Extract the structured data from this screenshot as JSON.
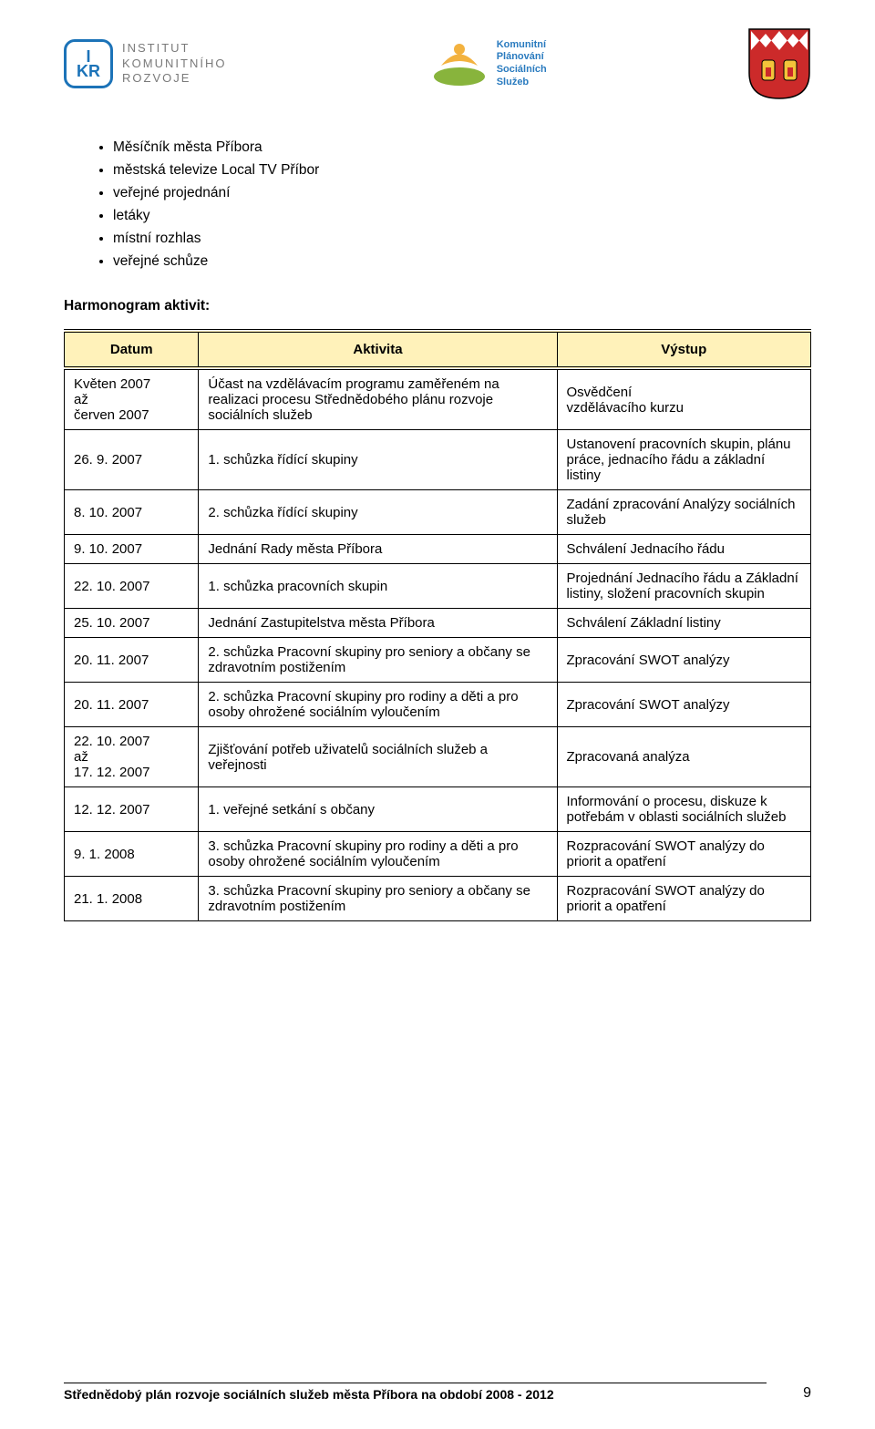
{
  "logos": {
    "ikr": {
      "abbr_top": "I",
      "abbr_bot": "KR",
      "line1": "INSTITUT",
      "line2": "KOMUNITNÍHO",
      "line3": "ROZVOJE"
    },
    "kpss": {
      "line1": "Komunitní",
      "line2": "Plánování",
      "line3": "Sociálních",
      "line4": "Služeb"
    }
  },
  "bullets": [
    "Měsíčník města Příbora",
    "městská televize Local TV Příbor",
    "veřejné projednání",
    "letáky",
    "místní rozhlas",
    "veřejné schůze"
  ],
  "section_title": "Harmonogram aktivit:",
  "table": {
    "headers": [
      "Datum",
      "Aktivita",
      "Výstup"
    ],
    "header_bg": "#fff2ba",
    "border_color": "#000000",
    "rows": [
      {
        "datum": "Květen 2007\naž\nčerven 2007",
        "datum_center": true,
        "aktivita": "Účast na vzdělávacím programu zaměřeném na realizaci procesu Střednědobého plánu rozvoje sociálních služeb",
        "vystup": "Osvědčení\nvzdělávacího kurzu",
        "vystup_center": true
      },
      {
        "datum": "26. 9. 2007",
        "aktivita": "1. schůzka řídící skupiny",
        "vystup": "Ustanovení pracovních skupin, plánu práce, jednacího řádu a základní listiny"
      },
      {
        "datum": "8. 10. 2007",
        "aktivita": "2. schůzka řídící skupiny",
        "vystup": "Zadání zpracování Analýzy sociálních služeb"
      },
      {
        "datum": "9. 10. 2007",
        "aktivita": "Jednání Rady města Příbora",
        "vystup": "Schválení Jednacího řádu"
      },
      {
        "datum": "22. 10. 2007",
        "aktivita": "1. schůzka pracovních skupin",
        "vystup": "Projednání Jednacího řádu a Základní listiny, složení pracovních skupin"
      },
      {
        "datum": "25. 10. 2007",
        "aktivita": "Jednání Zastupitelstva města Příbora",
        "vystup": "Schválení Základní listiny"
      },
      {
        "datum": "20. 11. 2007",
        "aktivita": "2. schůzka Pracovní skupiny pro seniory a občany se zdravotním postižením",
        "vystup": "Zpracování SWOT analýzy"
      },
      {
        "datum": "20. 11. 2007",
        "aktivita": "2. schůzka Pracovní skupiny pro rodiny a děti a pro osoby ohrožené sociálním vyloučením",
        "vystup": "Zpracování SWOT analýzy"
      },
      {
        "datum": "22. 10. 2007\naž\n17. 12. 2007",
        "datum_center": true,
        "aktivita": "Zjišťování potřeb uživatelů sociálních služeb a veřejnosti",
        "vystup": "Zpracovaná analýza"
      },
      {
        "datum": "12. 12. 2007",
        "aktivita": "1. veřejné setkání s občany",
        "vystup": "Informování o procesu, diskuze k potřebám v oblasti sociálních služeb"
      },
      {
        "datum": "9. 1. 2008",
        "datum_center": true,
        "aktivita": "3. schůzka Pracovní skupiny pro rodiny a děti a pro osoby ohrožené sociálním vyloučením",
        "vystup": "Rozpracování SWOT analýzy do priorit a opatření"
      },
      {
        "datum": "21. 1. 2008",
        "datum_center": true,
        "aktivita": "3. schůzka Pracovní skupiny pro seniory a občany se zdravotním postižením",
        "vystup": "Rozpracování SWOT analýzy do priorit a opatření"
      }
    ]
  },
  "footer": {
    "left": "Střednědobý plán rozvoje sociálních služeb města Příbora na období 2008 - 2012",
    "page": "9"
  },
  "colors": {
    "ikr_blue": "#1c73b8",
    "ikr_grey": "#7a7a7a",
    "kpss_blue": "#2a7bbf",
    "kpss_green": "#88b43c",
    "kpss_orange": "#f3b23f",
    "shield_red": "#cc2a2a",
    "shield_yellow": "#f3c33a"
  }
}
